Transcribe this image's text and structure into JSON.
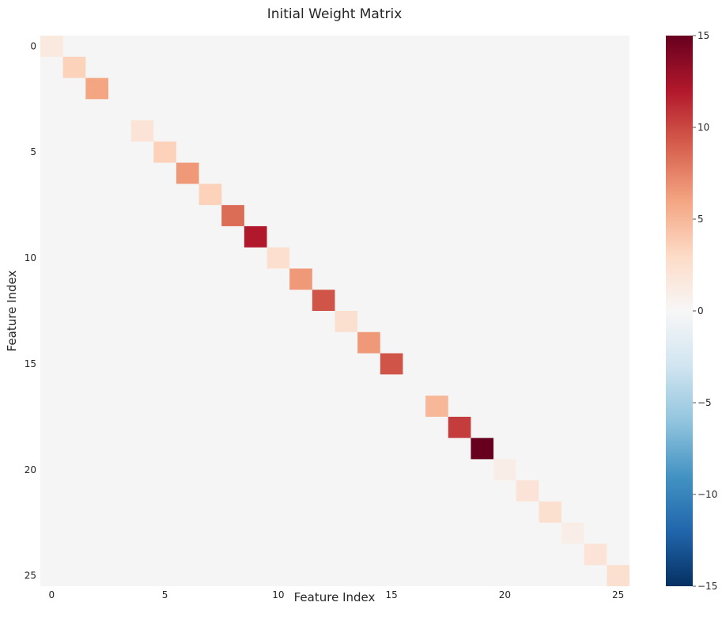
{
  "chart_data": {
    "type": "heatmap",
    "title": "Initial Weight Matrix",
    "xlabel": "Feature Index",
    "ylabel": "Feature Index",
    "size": 26,
    "default_value": 0,
    "background_color": "#f5f5f5",
    "cells": [
      {
        "row": 0,
        "col": 0,
        "value": 1.5
      },
      {
        "row": 1,
        "col": 1,
        "value": 3.5
      },
      {
        "row": 2,
        "col": 2,
        "value": 6.0
      },
      {
        "row": 4,
        "col": 4,
        "value": 2.0
      },
      {
        "row": 5,
        "col": 5,
        "value": 3.5
      },
      {
        "row": 6,
        "col": 6,
        "value": 6.5
      },
      {
        "row": 7,
        "col": 7,
        "value": 3.5
      },
      {
        "row": 8,
        "col": 8,
        "value": 8.5
      },
      {
        "row": 9,
        "col": 9,
        "value": 12.0
      },
      {
        "row": 10,
        "col": 10,
        "value": 2.5
      },
      {
        "row": 11,
        "col": 11,
        "value": 6.5
      },
      {
        "row": 12,
        "col": 12,
        "value": 9.5
      },
      {
        "row": 13,
        "col": 13,
        "value": 2.5
      },
      {
        "row": 14,
        "col": 14,
        "value": 6.5
      },
      {
        "row": 15,
        "col": 15,
        "value": 9.5
      },
      {
        "row": 17,
        "col": 17,
        "value": 5.0
      },
      {
        "row": 18,
        "col": 18,
        "value": 10.5
      },
      {
        "row": 19,
        "col": 19,
        "value": 15.0
      },
      {
        "row": 20,
        "col": 20,
        "value": 1.0
      },
      {
        "row": 21,
        "col": 21,
        "value": 2.0
      },
      {
        "row": 22,
        "col": 22,
        "value": 2.5
      },
      {
        "row": 23,
        "col": 23,
        "value": 1.0
      },
      {
        "row": 24,
        "col": 24,
        "value": 2.0
      },
      {
        "row": 25,
        "col": 25,
        "value": 2.5
      }
    ],
    "x_ticks": [
      "0",
      "5",
      "10",
      "15",
      "20",
      "25"
    ],
    "y_ticks": [
      "0",
      "5",
      "10",
      "15",
      "20",
      "25"
    ],
    "colorbar": {
      "vmin": -15,
      "vmax": 15,
      "colormap": "RdBu_r",
      "ticks": [
        "15",
        "10",
        "5",
        "0",
        "−5",
        "−10",
        "−15"
      ]
    }
  }
}
